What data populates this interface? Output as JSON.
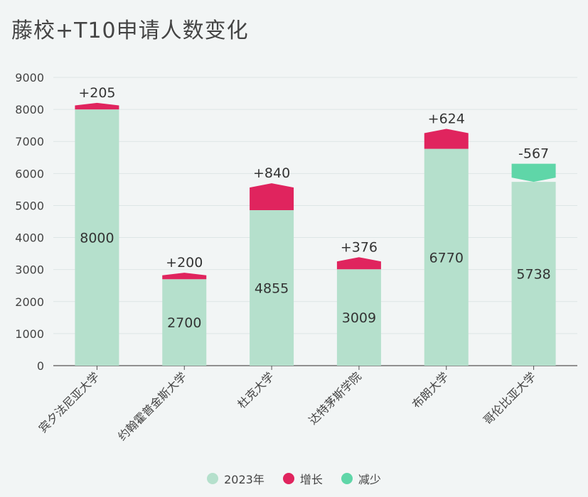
{
  "title": "藤校+T10申请人数变化",
  "chart_data": {
    "type": "bar",
    "categories": [
      "宾夕法尼亚大学",
      "约翰霍普金斯大学",
      "杜克大学",
      "达特茅斯学院",
      "布朗大学",
      "哥伦比亚大学"
    ],
    "series": [
      {
        "name": "2023年",
        "values": [
          8000,
          2700,
          4855,
          3009,
          6770,
          5738
        ]
      },
      {
        "name": "增长",
        "values": [
          205,
          200,
          840,
          376,
          624,
          null
        ]
      },
      {
        "name": "减少",
        "values": [
          null,
          null,
          null,
          null,
          null,
          567
        ]
      }
    ],
    "delta_labels": [
      "+205",
      "+200",
      "+840",
      "+376",
      "+624",
      "-567"
    ],
    "value_labels": [
      "8000",
      "2700",
      "4855",
      "3009",
      "6770",
      "5738"
    ],
    "yticks": [
      "0",
      "1000",
      "2000",
      "3000",
      "4000",
      "5000",
      "6000",
      "7000",
      "8000",
      "9000"
    ],
    "ylim": [
      0,
      9000
    ],
    "grid": true,
    "legend_position": "bottom",
    "colors": {
      "base": "#b5e0cc",
      "increase": "#e0245e",
      "decrease": "#5fd6a8"
    }
  },
  "legend": {
    "items": [
      {
        "label": "2023年",
        "color": "#b5e0cc"
      },
      {
        "label": "增长",
        "color": "#e0245e"
      },
      {
        "label": "减少",
        "color": "#5fd6a8"
      }
    ]
  }
}
